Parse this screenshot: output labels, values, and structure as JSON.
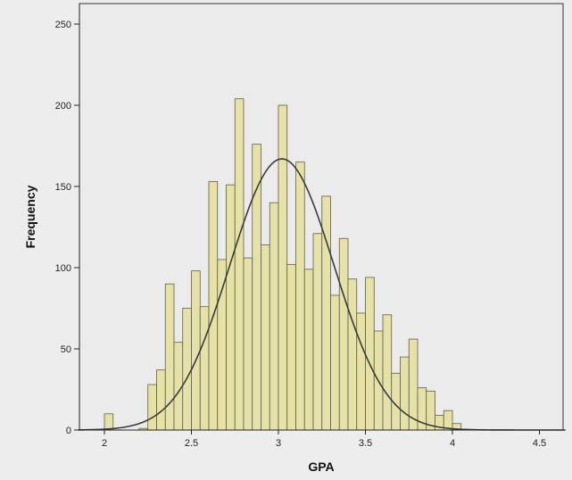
{
  "chart_data": {
    "type": "bar",
    "title": "",
    "xlabel": "GPA",
    "ylabel": "Frequency",
    "xlim": [
      1.85,
      4.65
    ],
    "ylim": [
      0,
      255
    ],
    "xticks": [
      2,
      2.5,
      3,
      3.5,
      4,
      4.5
    ],
    "xtick_labels": [
      "2",
      "2.5",
      "3",
      "3.5",
      "4",
      "4.5"
    ],
    "yticks": [
      0,
      50,
      100,
      150,
      200,
      250
    ],
    "ytick_labels": [
      "0",
      "50",
      "100",
      "150",
      "200",
      "250"
    ],
    "grid": false,
    "bin_width": 0.05,
    "bins": [
      {
        "x0": 2.0,
        "x1": 2.05,
        "value": 10
      },
      {
        "x0": 2.2,
        "x1": 2.25,
        "value": 1
      },
      {
        "x0": 2.25,
        "x1": 2.3,
        "value": 28
      },
      {
        "x0": 2.3,
        "x1": 2.35,
        "value": 37
      },
      {
        "x0": 2.35,
        "x1": 2.4,
        "value": 90
      },
      {
        "x0": 2.4,
        "x1": 2.45,
        "value": 54
      },
      {
        "x0": 2.45,
        "x1": 2.5,
        "value": 75
      },
      {
        "x0": 2.5,
        "x1": 2.55,
        "value": 98
      },
      {
        "x0": 2.55,
        "x1": 2.6,
        "value": 76
      },
      {
        "x0": 2.6,
        "x1": 2.65,
        "value": 153
      },
      {
        "x0": 2.65,
        "x1": 2.7,
        "value": 105
      },
      {
        "x0": 2.7,
        "x1": 2.75,
        "value": 151
      },
      {
        "x0": 2.75,
        "x1": 2.8,
        "value": 204
      },
      {
        "x0": 2.8,
        "x1": 2.85,
        "value": 106
      },
      {
        "x0": 2.85,
        "x1": 2.9,
        "value": 176
      },
      {
        "x0": 2.9,
        "x1": 2.95,
        "value": 114
      },
      {
        "x0": 2.95,
        "x1": 3.0,
        "value": 140
      },
      {
        "x0": 3.0,
        "x1": 3.05,
        "value": 200
      },
      {
        "x0": 3.05,
        "x1": 3.1,
        "value": 102
      },
      {
        "x0": 3.1,
        "x1": 3.15,
        "value": 165
      },
      {
        "x0": 3.15,
        "x1": 3.2,
        "value": 99
      },
      {
        "x0": 3.2,
        "x1": 3.25,
        "value": 121
      },
      {
        "x0": 3.25,
        "x1": 3.3,
        "value": 144
      },
      {
        "x0": 3.3,
        "x1": 3.35,
        "value": 83
      },
      {
        "x0": 3.35,
        "x1": 3.4,
        "value": 118
      },
      {
        "x0": 3.4,
        "x1": 3.45,
        "value": 93
      },
      {
        "x0": 3.45,
        "x1": 3.5,
        "value": 72
      },
      {
        "x0": 3.5,
        "x1": 3.55,
        "value": 94
      },
      {
        "x0": 3.55,
        "x1": 3.6,
        "value": 61
      },
      {
        "x0": 3.6,
        "x1": 3.65,
        "value": 71
      },
      {
        "x0": 3.65,
        "x1": 3.7,
        "value": 35
      },
      {
        "x0": 3.7,
        "x1": 3.75,
        "value": 45
      },
      {
        "x0": 3.75,
        "x1": 3.8,
        "value": 56
      },
      {
        "x0": 3.8,
        "x1": 3.85,
        "value": 26
      },
      {
        "x0": 3.85,
        "x1": 3.9,
        "value": 24
      },
      {
        "x0": 3.9,
        "x1": 3.95,
        "value": 9
      },
      {
        "x0": 3.95,
        "x1": 4.0,
        "value": 12
      },
      {
        "x0": 4.0,
        "x1": 4.05,
        "value": 4
      }
    ],
    "normal_curve": {
      "mean": 3.02,
      "std_dev": 0.3,
      "peak": 167
    },
    "colors": {
      "bar_fill": "#e6e2a7",
      "bar_stroke": "#5e5c4f",
      "curve": "#3a3a3a",
      "plot_background": "#ebebeb",
      "page_background": "#ededed",
      "axis": "#222222"
    }
  }
}
